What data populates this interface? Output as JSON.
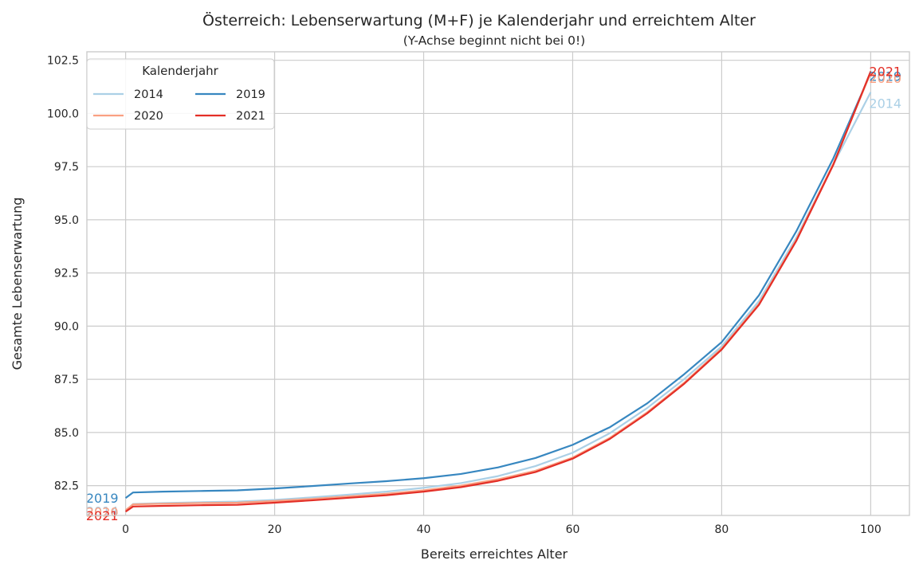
{
  "chart_data": {
    "type": "line",
    "title": "Österreich: Lebenserwartung (M+F) je Kalenderjahr und erreichtem Alter",
    "subtitle": "(Y-Achse beginnt nicht bei 0!)",
    "xlabel": "Bereits erreichtes Alter",
    "ylabel": "Gesamte Lebenserwartung",
    "xlim": [
      -5.2,
      105.2
    ],
    "ylim": [
      81.1,
      102.9
    ],
    "x_ticks": [
      0,
      20,
      40,
      60,
      80,
      100
    ],
    "x_tick_labels": [
      "0",
      "20",
      "40",
      "60",
      "80",
      "100"
    ],
    "y_ticks": [
      82.5,
      85.0,
      87.5,
      90.0,
      92.5,
      95.0,
      97.5,
      100.0,
      102.5
    ],
    "y_tick_labels": [
      "82.5",
      "85.0",
      "87.5",
      "90.0",
      "92.5",
      "95.0",
      "97.5",
      "100.0",
      "102.5"
    ],
    "grid": true,
    "legend": {
      "title": "Kalenderjahr",
      "position": "top-left",
      "columns": 2
    },
    "x": [
      0,
      1,
      5,
      10,
      15,
      20,
      25,
      30,
      35,
      40,
      45,
      50,
      55,
      60,
      65,
      70,
      75,
      80,
      85,
      90,
      95,
      100
    ],
    "series": [
      {
        "name": "2014",
        "color": "#abd0e6",
        "values": [
          81.3,
          81.64,
          81.68,
          81.72,
          81.75,
          81.83,
          81.95,
          82.08,
          82.22,
          82.4,
          82.62,
          82.95,
          83.42,
          84.05,
          84.97,
          86.15,
          87.52,
          89.05,
          91.18,
          94.15,
          97.62,
          101.0
        ],
        "end_label": "2014"
      },
      {
        "name": "2019",
        "color": "#3787c0",
        "values": [
          81.92,
          82.18,
          82.22,
          82.25,
          82.28,
          82.37,
          82.48,
          82.6,
          82.71,
          82.85,
          83.05,
          83.36,
          83.8,
          84.42,
          85.25,
          86.37,
          87.75,
          89.25,
          91.45,
          94.45,
          97.9,
          101.9
        ],
        "end_label": "2019"
      },
      {
        "name": "2020",
        "color": "#f9a082",
        "values": [
          81.35,
          81.62,
          81.65,
          81.68,
          81.7,
          81.78,
          81.88,
          82.0,
          82.12,
          82.28,
          82.5,
          82.8,
          83.2,
          83.82,
          84.75,
          85.95,
          87.35,
          88.95,
          91.05,
          94.05,
          97.65,
          101.92
        ],
        "end_label": "2020"
      },
      {
        "name": "2021",
        "color": "#e32f27",
        "values": [
          81.28,
          81.52,
          81.55,
          81.58,
          81.6,
          81.7,
          81.81,
          81.93,
          82.05,
          82.22,
          82.43,
          82.73,
          83.14,
          83.77,
          84.7,
          85.9,
          87.3,
          88.9,
          91.0,
          94.0,
          97.6,
          101.98
        ],
        "end_label": "2021"
      }
    ]
  }
}
